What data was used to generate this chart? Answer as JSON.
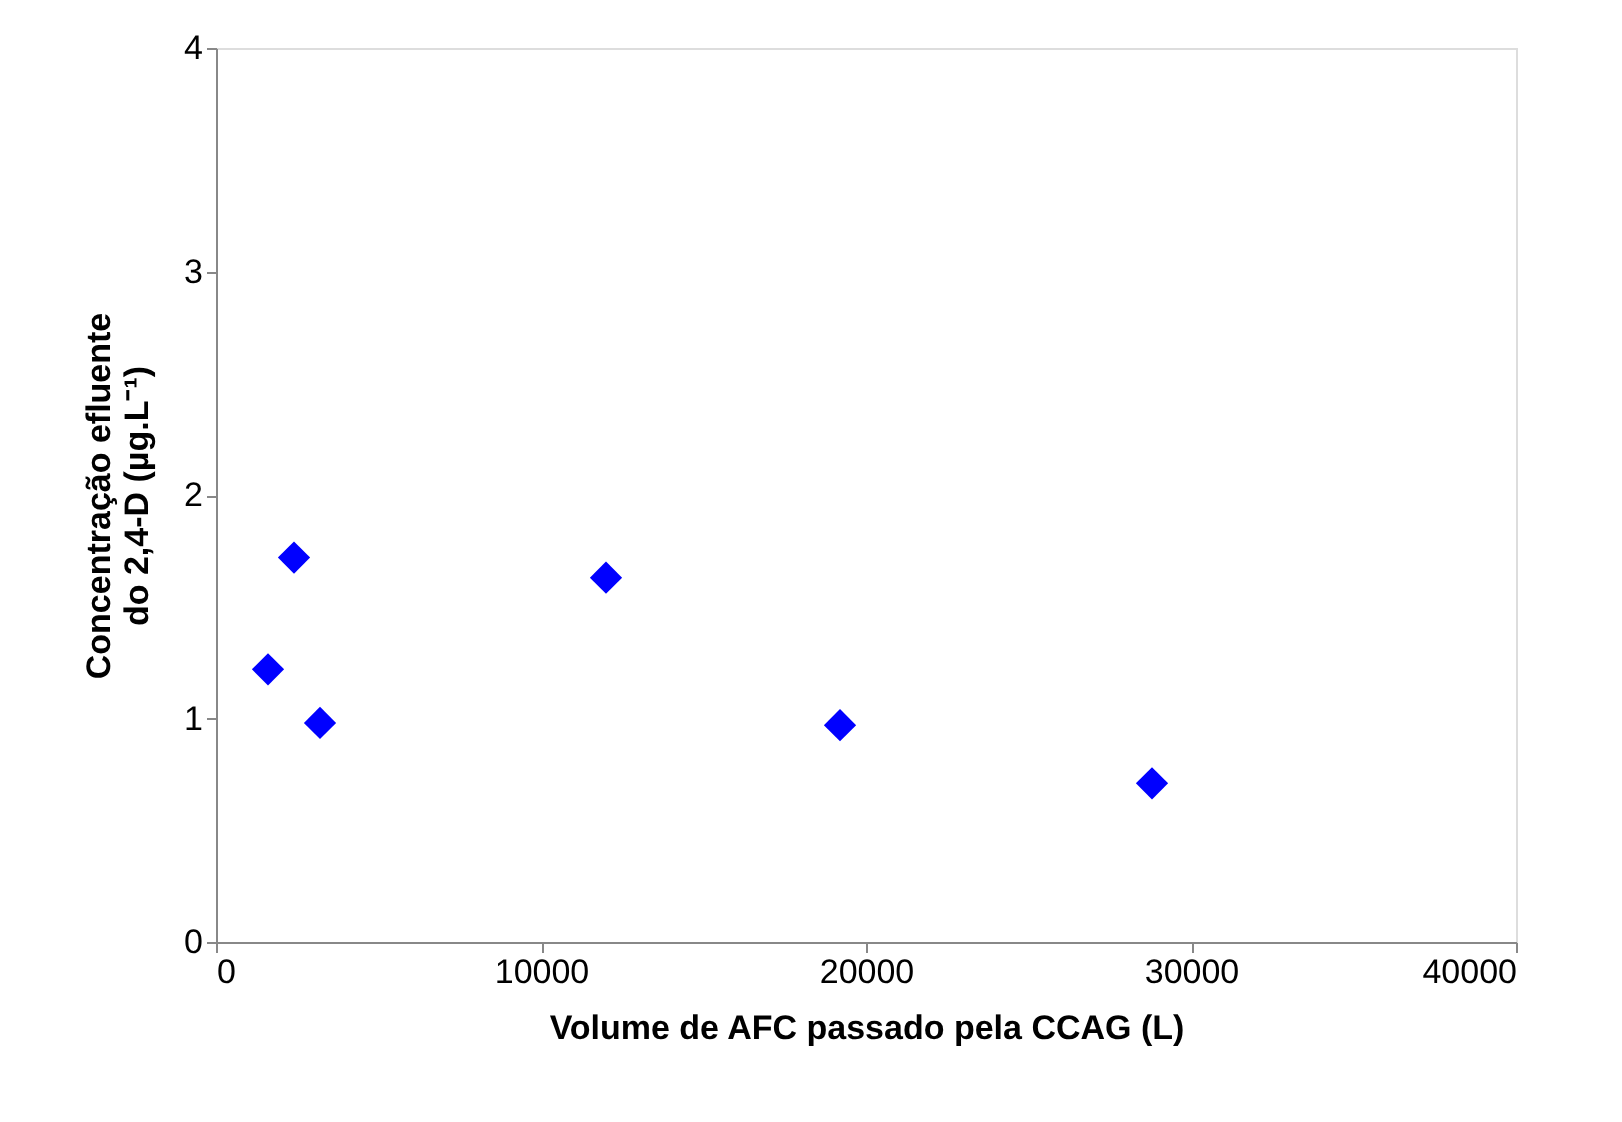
{
  "chart_data": {
    "type": "scatter",
    "xlabel": "Volume de AFC passado pela CCAG (L)",
    "ylabel": "Concentração efluente do 2,4-D (µg.L⁻¹)",
    "x": [
      1600,
      2400,
      3200,
      12000,
      19200,
      28800
    ],
    "series": [
      {
        "color": "#0000ff",
        "values": [
          1.22,
          1.72,
          0.98,
          1.63,
          0.97,
          0.71
        ]
      }
    ],
    "xlim": [
      0,
      40000
    ],
    "xticks": [
      0,
      10000,
      20000,
      30000,
      40000
    ],
    "ylim": [
      0,
      4
    ],
    "yticks": [
      0,
      1,
      2,
      3,
      4
    ],
    "marker": "diamond",
    "grid": false,
    "legend": false
  }
}
